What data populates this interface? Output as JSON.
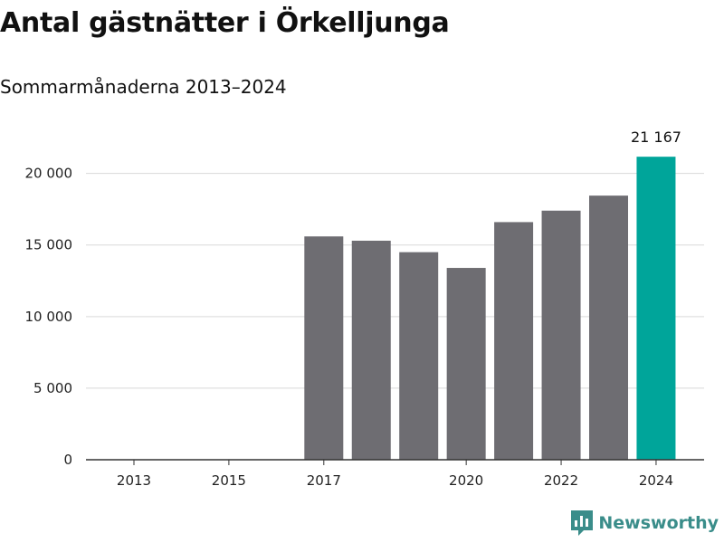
{
  "header": {
    "title": "Antal gästnätter i Örkelljunga",
    "subtitle": "Sommarmånaderna 2013–2024"
  },
  "brand": {
    "name": "Newsworthy",
    "icon": "newsworthy-logo-icon",
    "color": "#3a8d8a"
  },
  "colors": {
    "bar": "#6e6d72",
    "highlight": "#00a59a",
    "grid": "#d9d9d9",
    "axis": "#333333"
  },
  "chart_data": {
    "type": "bar",
    "title": "Antal gästnätter i Örkelljunga",
    "subtitle": "Sommarmånaderna 2013–2024",
    "categories": [
      "2013",
      "2014",
      "2015",
      "2016",
      "2017",
      "2018",
      "2019",
      "2020",
      "2021",
      "2022",
      "2023",
      "2024"
    ],
    "values": [
      null,
      null,
      null,
      null,
      15600,
      15300,
      14500,
      13400,
      16600,
      17400,
      18450,
      21167
    ],
    "x_tick_labels": [
      "2013",
      "2015",
      "2017",
      "2020",
      "2022",
      "2024"
    ],
    "y_ticks": [
      0,
      5000,
      10000,
      15000,
      20000
    ],
    "y_tick_labels": [
      "0",
      "5 000",
      "10 000",
      "15 000",
      "20 000"
    ],
    "ylim": [
      0,
      22000
    ],
    "highlight_index": 11,
    "data_labels": [
      {
        "index": 11,
        "text": "21 167"
      }
    ],
    "xlabel": "",
    "ylabel": "",
    "grid": true,
    "legend": "none"
  }
}
